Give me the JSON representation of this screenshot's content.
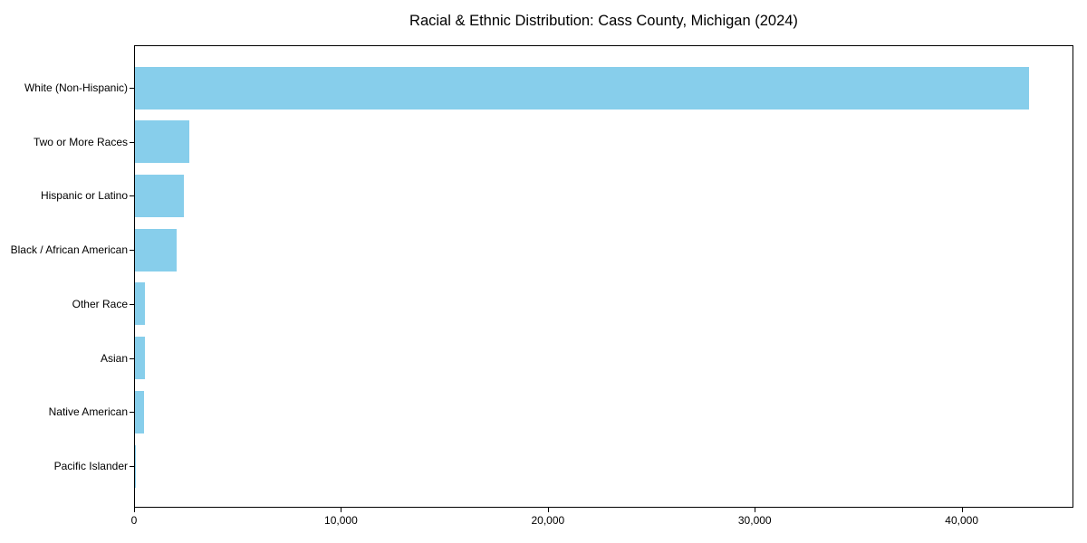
{
  "chart_data": {
    "type": "bar",
    "orientation": "horizontal",
    "title": "Racial & Ethnic Distribution: Cass County, Michigan (2024)",
    "categories": [
      "White (Non-Hispanic)",
      "Two or More Races",
      "Hispanic or Latino",
      "Black / African American",
      "Other Race",
      "Asian",
      "Native American",
      "Pacific Islander"
    ],
    "values": [
      43200,
      2620,
      2360,
      2010,
      490,
      480,
      430,
      20
    ],
    "xlabel": "",
    "ylabel": "",
    "xlim": [
      0,
      45400
    ],
    "x_ticks": [
      {
        "value": 0,
        "label": "0"
      },
      {
        "value": 10000,
        "label": "10,000"
      },
      {
        "value": 20000,
        "label": "20,000"
      },
      {
        "value": 30000,
        "label": "30,000"
      },
      {
        "value": 40000,
        "label": "40,000"
      }
    ],
    "bar_color": "#87CEEB",
    "background_color": "#ffffff",
    "axis_color": "#000000",
    "grid": false,
    "legend": false
  }
}
